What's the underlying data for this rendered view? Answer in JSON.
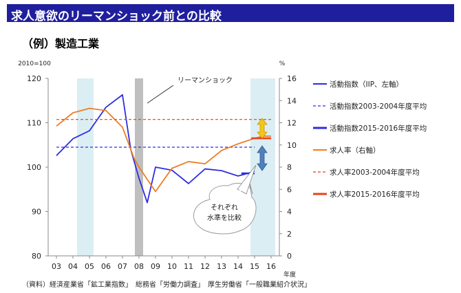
{
  "header": {
    "title": "求人意欲のリーマンショック前との比較"
  },
  "subtitle": "（例）製造工業",
  "source_note": "（資料）経済産業省「鉱工業指数」　総務省「労働力調査」　厚生労働省「一般職業紹介状況」",
  "chart_data": {
    "type": "line",
    "left_unit_label": "2010=100",
    "right_unit_label": "%",
    "x_unit_label": "年度",
    "categories": [
      "03",
      "04",
      "05",
      "06",
      "07",
      "08",
      "09",
      "10",
      "11",
      "12",
      "13",
      "14",
      "15",
      "16"
    ],
    "ylim_left": [
      80,
      120
    ],
    "ylim_right": [
      0,
      16
    ],
    "yticks_left": [
      80,
      90,
      100,
      110,
      120
    ],
    "yticks_right": [
      0,
      2,
      4,
      6,
      8,
      10,
      12,
      14,
      16
    ],
    "x_domain": [
      -0.5,
      13.5
    ],
    "shaded_regions": [
      {
        "from": 2.5,
        "to": 4.5,
        "color": "#dbeef4"
      },
      {
        "from": 9.5,
        "to": 10.5,
        "color": "#bfbfbf"
      },
      {
        "from": 23.5,
        "to": 26.5,
        "color": "#dbeef4"
      }
    ],
    "x_scale_note": "shaded region positions are on a half-year scale (x*2), matching the quarterly-ish series below",
    "series": [
      {
        "name": "活動指数（IIP、左軸）",
        "axis": "left",
        "style": "solid",
        "color": "#2d2de0",
        "points": [
          [
            0,
            102.6
          ],
          [
            1,
            106.4
          ],
          [
            2,
            108.2
          ],
          [
            3,
            113.5
          ],
          [
            4,
            116.3
          ],
          [
            4.5,
            104
          ],
          [
            5,
            97.5
          ],
          [
            5.5,
            92
          ],
          [
            6,
            100
          ],
          [
            7,
            99.3
          ],
          [
            8,
            96.3
          ],
          [
            9,
            99.6
          ],
          [
            10,
            99.2
          ],
          [
            11,
            98
          ],
          [
            11.5,
            98.5
          ],
          [
            12,
            99.1
          ]
        ]
      },
      {
        "name": "活動指数2003-2004年度平均",
        "axis": "left",
        "style": "dashed",
        "color": "#2d2de0",
        "points": [
          [
            0,
            104.5
          ],
          [
            12,
            104.5
          ]
        ]
      },
      {
        "name": "活動指数2015-2016年度平均",
        "axis": "left",
        "style": "solid-thick",
        "color": "#2d2de0",
        "points": [
          [
            11.2,
            98.6
          ],
          [
            12,
            98.6
          ]
        ]
      },
      {
        "name": "求人率（右軸）",
        "axis": "right",
        "style": "solid",
        "color": "#ee7d22",
        "points": [
          [
            0,
            11.7
          ],
          [
            1,
            12.9
          ],
          [
            2,
            13.3
          ],
          [
            3,
            13.1
          ],
          [
            4,
            11.6
          ],
          [
            4.7,
            8.8
          ],
          [
            5,
            8
          ],
          [
            6,
            5.8
          ],
          [
            7,
            7.9
          ],
          [
            8,
            8.5
          ],
          [
            9,
            8.3
          ],
          [
            10,
            9.5
          ],
          [
            11,
            10.1
          ],
          [
            12,
            10.6
          ],
          [
            12.5,
            10.8
          ],
          [
            13,
            10.8
          ]
        ]
      },
      {
        "name": "求人率2003-2004年度平均",
        "axis": "right",
        "style": "dashed",
        "color": "#ff3300",
        "points": [
          [
            0,
            12.3
          ],
          [
            13,
            12.3
          ]
        ]
      },
      {
        "name": "求人率2015-2016年度平均",
        "axis": "right",
        "style": "solid-thick",
        "color": "#e8421a",
        "points": [
          [
            11.8,
            10.6
          ],
          [
            13,
            10.6
          ]
        ]
      }
    ],
    "annotations": [
      {
        "text": "リーマンショック"
      },
      {
        "text_lines": [
          "それぞれ",
          "水準を比較"
        ]
      }
    ],
    "legend": [
      {
        "label": "活動指数（IIP、左軸）",
        "style": "solid",
        "color": "#2d2de0"
      },
      {
        "label": "活動指数2003-2004年度平均",
        "style": "dashed",
        "color": "#2d2de0"
      },
      {
        "label": "活動指数2015-2016年度平均",
        "style": "solid-thick",
        "color": "#2d2de0"
      },
      {
        "label": "求人率（右軸）",
        "style": "solid",
        "color": "#ee7d22"
      },
      {
        "label": "求人率2003-2004年度平均",
        "style": "dashed",
        "color": "#ff3300"
      },
      {
        "label": "求人率2015-2016年度平均",
        "style": "solid-thick",
        "color": "#e8421a"
      }
    ],
    "arrows": [
      {
        "name": "gap-arrow-jobs",
        "color": "#f5c518"
      },
      {
        "name": "gap-arrow-activity",
        "color": "#4f81bd"
      }
    ]
  }
}
